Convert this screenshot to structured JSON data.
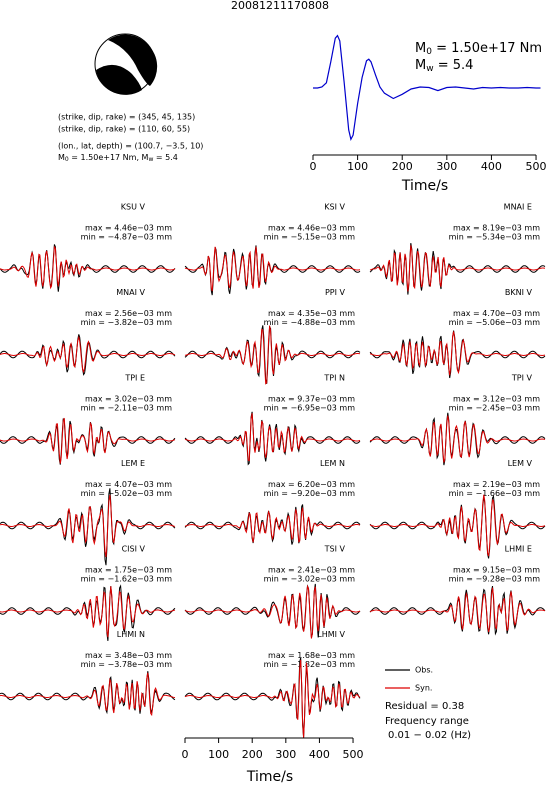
{
  "title": "20081211170808",
  "mechanism": [
    "(strike, dip, rake) = (345, 45, 135)",
    "(strike, dip, rake) = (110, 60, 55)",
    "(lon., lat, depth) = (100.7, −3.5, 10)"
  ],
  "moment_line": {
    "symbol": "M",
    "sub0": "0",
    "text0": " = 1.50e+17 Nm, ",
    "symbol2": "M",
    "sub1": "w",
    "text1": " = 5.4"
  },
  "chart_data": {
    "type": "line",
    "moment": {
      "symbol": "M",
      "sub": "0",
      "text": " = 1.50e+17 Nm"
    },
    "magnitude": {
      "symbol": "M",
      "sub": "w",
      "text": " = 5.4"
    },
    "x": [
      0,
      10,
      20,
      30,
      40,
      50,
      55,
      60,
      70,
      80,
      85,
      90,
      100,
      110,
      120,
      125,
      130,
      140,
      150,
      160,
      180,
      200,
      220,
      240,
      260,
      280,
      300,
      320,
      340,
      360,
      380,
      400,
      420,
      440,
      460,
      480,
      500,
      510
    ],
    "values": [
      0,
      0,
      0.02,
      0.1,
      0.5,
      0.95,
      1.0,
      0.9,
      0.1,
      -0.8,
      -0.98,
      -0.9,
      -0.3,
      0.2,
      0.52,
      0.55,
      0.5,
      0.25,
      0.02,
      -0.1,
      -0.2,
      -0.12,
      -0.02,
      0.02,
      0.01,
      -0.05,
      0.01,
      0.02,
      0,
      -0.02,
      0.01,
      0,
      0.01,
      0,
      0,
      0.01,
      0,
      0
    ],
    "color": "#0000cc",
    "xlim": [
      0,
      510
    ],
    "ylim": [
      -1.05,
      1.05
    ],
    "xticks": [
      0,
      100,
      200,
      300,
      400,
      500
    ],
    "xlabel": "Time/s"
  },
  "panels": [
    {
      "station": "KSU V",
      "max": "max = 4.46e−03 mm",
      "min": "min = −4.87e−03 mm"
    },
    {
      "station": "KSI V",
      "max": "max = 4.46e−03 mm",
      "min": "min = −5.15e−03 mm"
    },
    {
      "station": "MNAI E",
      "max": "max = 8.19e−03 mm",
      "min": "min = −5.34e−03 mm"
    },
    {
      "station": "MNAI V",
      "max": "max = 2.56e−03 mm",
      "min": "min = −3.82e−03 mm"
    },
    {
      "station": "PPI V",
      "max": "max = 4.35e−03 mm",
      "min": "min = −4.88e−03 mm"
    },
    {
      "station": "BKNI V",
      "max": "max = 4.70e−03 mm",
      "min": "min = −5.06e−03 mm"
    },
    {
      "station": "TPI E",
      "max": "max = 3.02e−03 mm",
      "min": "min = −2.11e−03 mm"
    },
    {
      "station": "TPI N",
      "max": "max = 9.37e−03 mm",
      "min": "min = −6.95e−03 mm"
    },
    {
      "station": "TPI V",
      "max": "max = 3.12e−03 mm",
      "min": "min = −2.45e−03 mm"
    },
    {
      "station": "LEM E",
      "max": "max = 4.07e−03 mm",
      "min": "min = −5.02e−03 mm"
    },
    {
      "station": "LEM N",
      "max": "max = 6.20e−03 mm",
      "min": "min = −9.20e−03 mm"
    },
    {
      "station": "LEM V",
      "max": "max = 2.19e−03 mm",
      "min": "min = −1.66e−03 mm"
    },
    {
      "station": "CISI V",
      "max": "max = 1.75e−03 mm",
      "min": "min = −1.62e−03 mm"
    },
    {
      "station": "TSI V",
      "max": "max = 2.41e−03 mm",
      "min": "min = −3.02e−03 mm"
    },
    {
      "station": "LHMI E",
      "max": "max = 9.15e−03 mm",
      "min": "min = −9.28e−03 mm"
    },
    {
      "station": "LHMI N",
      "max": "max = 3.48e−03 mm",
      "min": "min = −3.78e−03 mm"
    },
    {
      "station": "LHMI V",
      "max": "max = 1.68e−03 mm",
      "min": "min = −1.82e−03 mm"
    }
  ],
  "legend": {
    "obs": "Obs.",
    "syn": "Syn.",
    "obs_color": "#000000",
    "syn_color": "#dd0000"
  },
  "residual": "Residual = 0.38",
  "frequency": [
    "Frequency range",
    "0.01 − 0.02 (Hz)"
  ],
  "time_axis": {
    "xlim": [
      0,
      510
    ],
    "xticks": [
      0,
      100,
      200,
      300,
      400,
      500
    ],
    "xlabel": "Time/s"
  }
}
